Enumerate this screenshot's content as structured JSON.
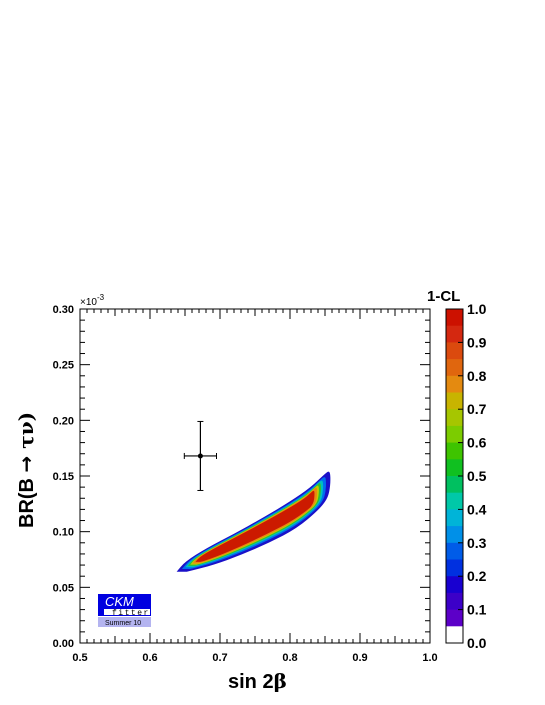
{
  "chart_data": {
    "type": "heatmap",
    "xlabel_main": "sin 2",
    "xlabel_greek": "β",
    "ylabel_main": "BR(B ",
    "ylabel_arrow": "→",
    "ylabel_greek": " τν)",
    "y_exponent_prefix": "×10",
    "y_exponent_power": "-3",
    "xlim": [
      0.5,
      1.0
    ],
    "ylim": [
      0.0,
      0.3
    ],
    "x_ticks": [
      "0.5",
      "0.6",
      "0.7",
      "0.8",
      "0.9",
      "1.0"
    ],
    "y_ticks": [
      "0.00",
      "0.05",
      "0.10",
      "0.15",
      "0.20",
      "0.25",
      "0.30"
    ],
    "colorbar": {
      "title": "1-CL",
      "range": [
        0.0,
        1.0
      ],
      "ticks": [
        "0.0",
        "0.1",
        "0.2",
        "0.3",
        "0.4",
        "0.5",
        "0.6",
        "0.7",
        "0.8",
        "0.9",
        "1.0"
      ],
      "levels_top_to_bottom": [
        "#cc1100",
        "#d42810",
        "#db4a0e",
        "#e0660e",
        "#e48a10",
        "#c8b400",
        "#a6c600",
        "#7ccc00",
        "#3ec400",
        "#10c020",
        "#00c060",
        "#00c8a8",
        "#00b4d8",
        "#0090e8",
        "#005ce8",
        "#0030e0",
        "#1800d0",
        "#3c00c8",
        "#5c00c8",
        "#ffffff"
      ]
    },
    "region": {
      "description_levels": [
        {
          "cl_min": 0.0,
          "color": "#1a10c8"
        },
        {
          "cl_min": 0.2,
          "color": "#0070ee"
        },
        {
          "cl_min": 0.4,
          "color": "#00c0c0"
        },
        {
          "cl_min": 0.55,
          "color": "#30c030"
        },
        {
          "cl_min": 0.7,
          "color": "#c8c800"
        },
        {
          "cl_min": 0.8,
          "color": "#e88a10"
        },
        {
          "cl_min": 0.9,
          "color": "#cc1a00"
        }
      ]
    },
    "measurement": {
      "x": 0.672,
      "y": 0.168,
      "x_err": 0.023,
      "y_err": 0.031
    }
  },
  "logo": {
    "line1": "CKM",
    "line2": "fitter",
    "line3": "Summer 10",
    "colors": {
      "dark": "#0000e0",
      "light": "#b4b4f0"
    }
  }
}
